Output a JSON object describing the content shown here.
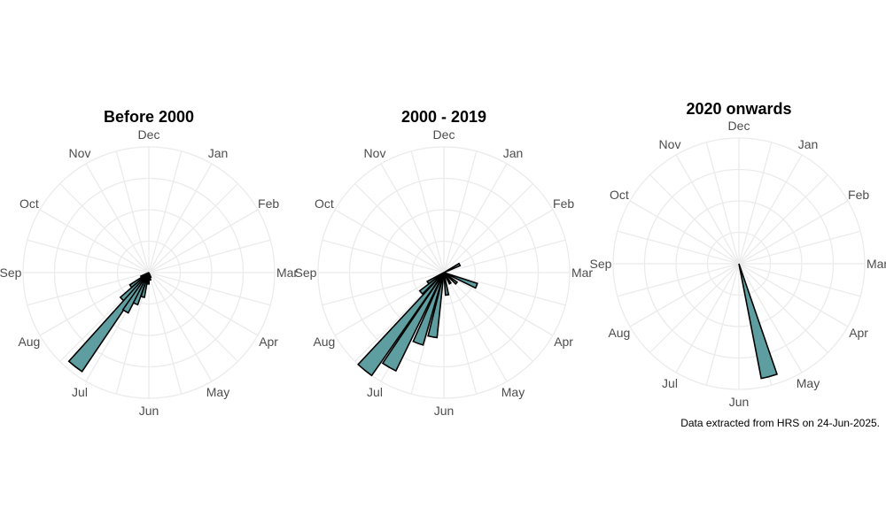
{
  "chart_data": [
    {
      "type": "bar",
      "polar": true,
      "title": "Before 2000",
      "months": [
        "Jan",
        "Feb",
        "Mar",
        "Apr",
        "May",
        "Jun",
        "Jul",
        "Aug",
        "Sep",
        "Oct",
        "Nov",
        "Dec"
      ],
      "ylim": [
        0,
        1
      ],
      "grid": true,
      "bars": [
        {
          "angle_deg": 242,
          "value": 0.07
        },
        {
          "angle_deg": 233,
          "value": 0.18
        },
        {
          "angle_deg": 225,
          "value": 0.3
        },
        {
          "angle_deg": 218,
          "value": 0.95
        },
        {
          "angle_deg": 211,
          "value": 0.36
        },
        {
          "angle_deg": 203,
          "value": 0.27
        },
        {
          "angle_deg": 194,
          "value": 0.2
        },
        {
          "angle_deg": 183,
          "value": 0.09
        },
        {
          "angle_deg": 170,
          "value": 0.06
        },
        {
          "angle_deg": 160,
          "value": 0.04
        }
      ]
    },
    {
      "type": "bar",
      "polar": true,
      "title": "2000 - 2019",
      "months": [
        "Jan",
        "Feb",
        "Mar",
        "Apr",
        "May",
        "Jun",
        "Jul",
        "Aug",
        "Sep",
        "Oct",
        "Nov",
        "Dec"
      ],
      "ylim": [
        0,
        1
      ],
      "grid": true,
      "bars": [
        {
          "angle_deg": 63,
          "value": 0.14
        },
        {
          "angle_deg": 112,
          "value": 0.28
        },
        {
          "angle_deg": 130,
          "value": 0.13
        },
        {
          "angle_deg": 150,
          "value": 0.1
        },
        {
          "angle_deg": 172,
          "value": 0.18
        },
        {
          "angle_deg": 190,
          "value": 0.52
        },
        {
          "angle_deg": 200,
          "value": 0.6
        },
        {
          "angle_deg": 210,
          "value": 0.87
        },
        {
          "angle_deg": 219,
          "value": 1.0
        },
        {
          "angle_deg": 229,
          "value": 0.24
        },
        {
          "angle_deg": 238,
          "value": 0.15
        }
      ]
    },
    {
      "type": "bar",
      "polar": true,
      "title": "2020 onwards",
      "months": [
        "Jan",
        "Feb",
        "Mar",
        "Apr",
        "May",
        "Jun",
        "Jul",
        "Aug",
        "Sep",
        "Oct",
        "Nov",
        "Dec"
      ],
      "ylim": [
        0,
        1
      ],
      "grid": true,
      "bars": [
        {
          "angle_deg": 165,
          "value": 0.93
        }
      ]
    }
  ],
  "caption": "Data extracted from HRS on 24-Jun-2025."
}
